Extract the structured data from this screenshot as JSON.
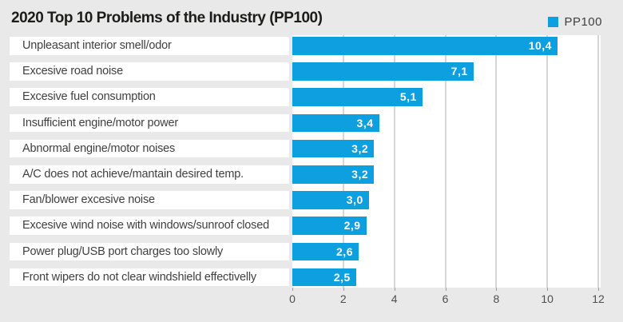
{
  "title": "2020 Top 10 Problems of the Industry (PP100)",
  "legend": {
    "label": "PP100"
  },
  "colors": {
    "bar": "#0d9fe0",
    "page_background": "#e9e9e9",
    "plot_background": "#ffffff",
    "gridline": "#d6d6d6",
    "title_text": "#1c1c1a",
    "category_text": "#3f3f3f",
    "axis_text": "#4f4f4e",
    "value_text": "#ffffff"
  },
  "chart_data": {
    "type": "bar",
    "orientation": "horizontal",
    "title": "2020 Top 10 Problems of the Industry (PP100)",
    "legend_entries": [
      "PP100"
    ],
    "legend_position": "top-right",
    "categories": [
      "Unpleasant interior smell/odor",
      "Excesive road noise",
      "Excesive fuel consumption",
      "Insufficient engine/motor power",
      "Abnormal engine/motor noises",
      "A/C does not achieve/mantain desired temp.",
      "Fan/blower excesive noise",
      "Excesive wind noise with windows/sunroof closed",
      "Power plug/USB port charges too slowly",
      "Front wipers do not clear windshield effectivelly"
    ],
    "values": [
      10.4,
      7.1,
      5.1,
      3.4,
      3.2,
      3.2,
      3.0,
      2.9,
      2.6,
      2.5
    ],
    "value_labels": [
      "10,4",
      "7,1",
      "5,1",
      "3,4",
      "3,2",
      "3,2",
      "3,0",
      "2,9",
      "2,6",
      "2,5"
    ],
    "xlabel": "",
    "ylabel": "",
    "xlim": [
      0,
      12
    ],
    "xticks": [
      0,
      2,
      4,
      6,
      8,
      10,
      12
    ],
    "grid": true,
    "decimal_separator": ","
  }
}
